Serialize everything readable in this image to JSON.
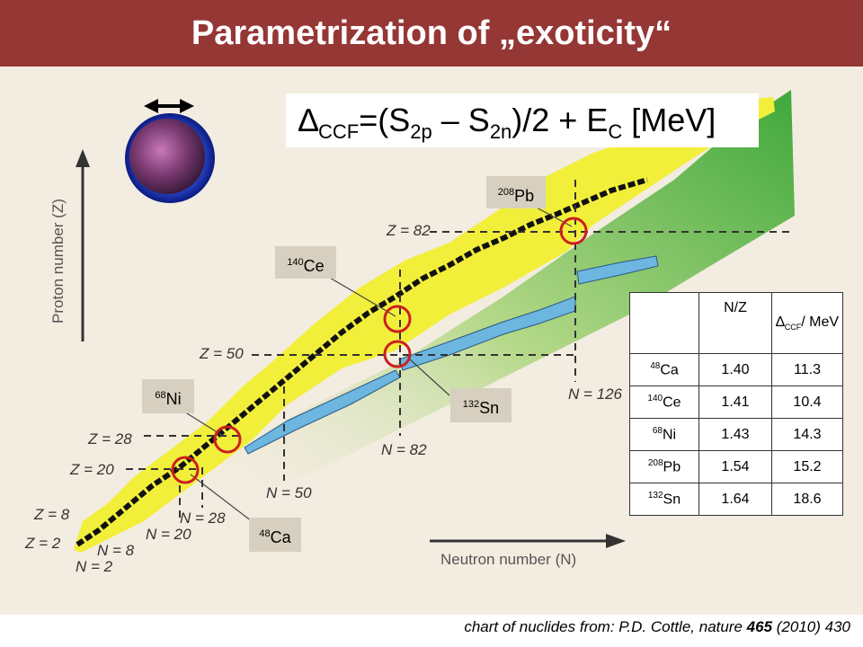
{
  "slide": {
    "title": "Parametrization of „exoticity“",
    "caption_prefix": "chart of nuclides from: P.D. Cottle, nature ",
    "caption_volume": "465",
    "caption_suffix": " (2010) 430"
  },
  "formula": {
    "delta": "∆",
    "ccf": "CCF",
    "eq_open": "=(S",
    "s2p_sub": "2p",
    "minus": " – S",
    "s2n_sub": "2n",
    "tail": ")/2 + E",
    "ec_sub": "C",
    "unit": " [MeV]"
  },
  "chart": {
    "y_axis_label": "Proton number (Z)",
    "x_axis_label": "Neutron number (N)",
    "z_labels": [
      "Z = 2",
      "Z = 8",
      "Z = 20",
      "Z = 28",
      "Z = 50",
      "Z = 82"
    ],
    "n_labels": [
      "N = 2",
      "N = 8",
      "N = 20",
      "N = 28",
      "N = 50",
      "N = 82",
      "N = 126"
    ]
  },
  "nuclei_labels": [
    {
      "mass": "208",
      "symbol": "Pb"
    },
    {
      "mass": "140",
      "symbol": "Ce"
    },
    {
      "mass": "68",
      "symbol": "Ni"
    },
    {
      "mass": "132",
      "symbol": "Sn"
    },
    {
      "mass": "48",
      "symbol": "Ca"
    }
  ],
  "table": {
    "header_nz": "N/Z",
    "header_delta": "∆",
    "header_ccf": "CCF",
    "header_unit": "/ MeV",
    "rows": [
      {
        "mass": "48",
        "symbol": "Ca",
        "nz": "1.40",
        "dccf": "11.3"
      },
      {
        "mass": "140",
        "symbol": "Ce",
        "nz": "1.41",
        "dccf": "10.4"
      },
      {
        "mass": "68",
        "symbol": "Ni",
        "nz": "1.43",
        "dccf": "14.3"
      },
      {
        "mass": "208",
        "symbol": "Pb",
        "nz": "1.54",
        "dccf": "15.2"
      },
      {
        "mass": "132",
        "symbol": "Sn",
        "nz": "1.64",
        "dccf": "18.6"
      }
    ]
  },
  "colors": {
    "title_bar": "#953735",
    "stable_band": "#f2ef3a",
    "stable_line": "#111111",
    "neutron_drip": "#6cb6e0",
    "green_region": "#5fb54a",
    "circle": "#cc1f1f"
  }
}
